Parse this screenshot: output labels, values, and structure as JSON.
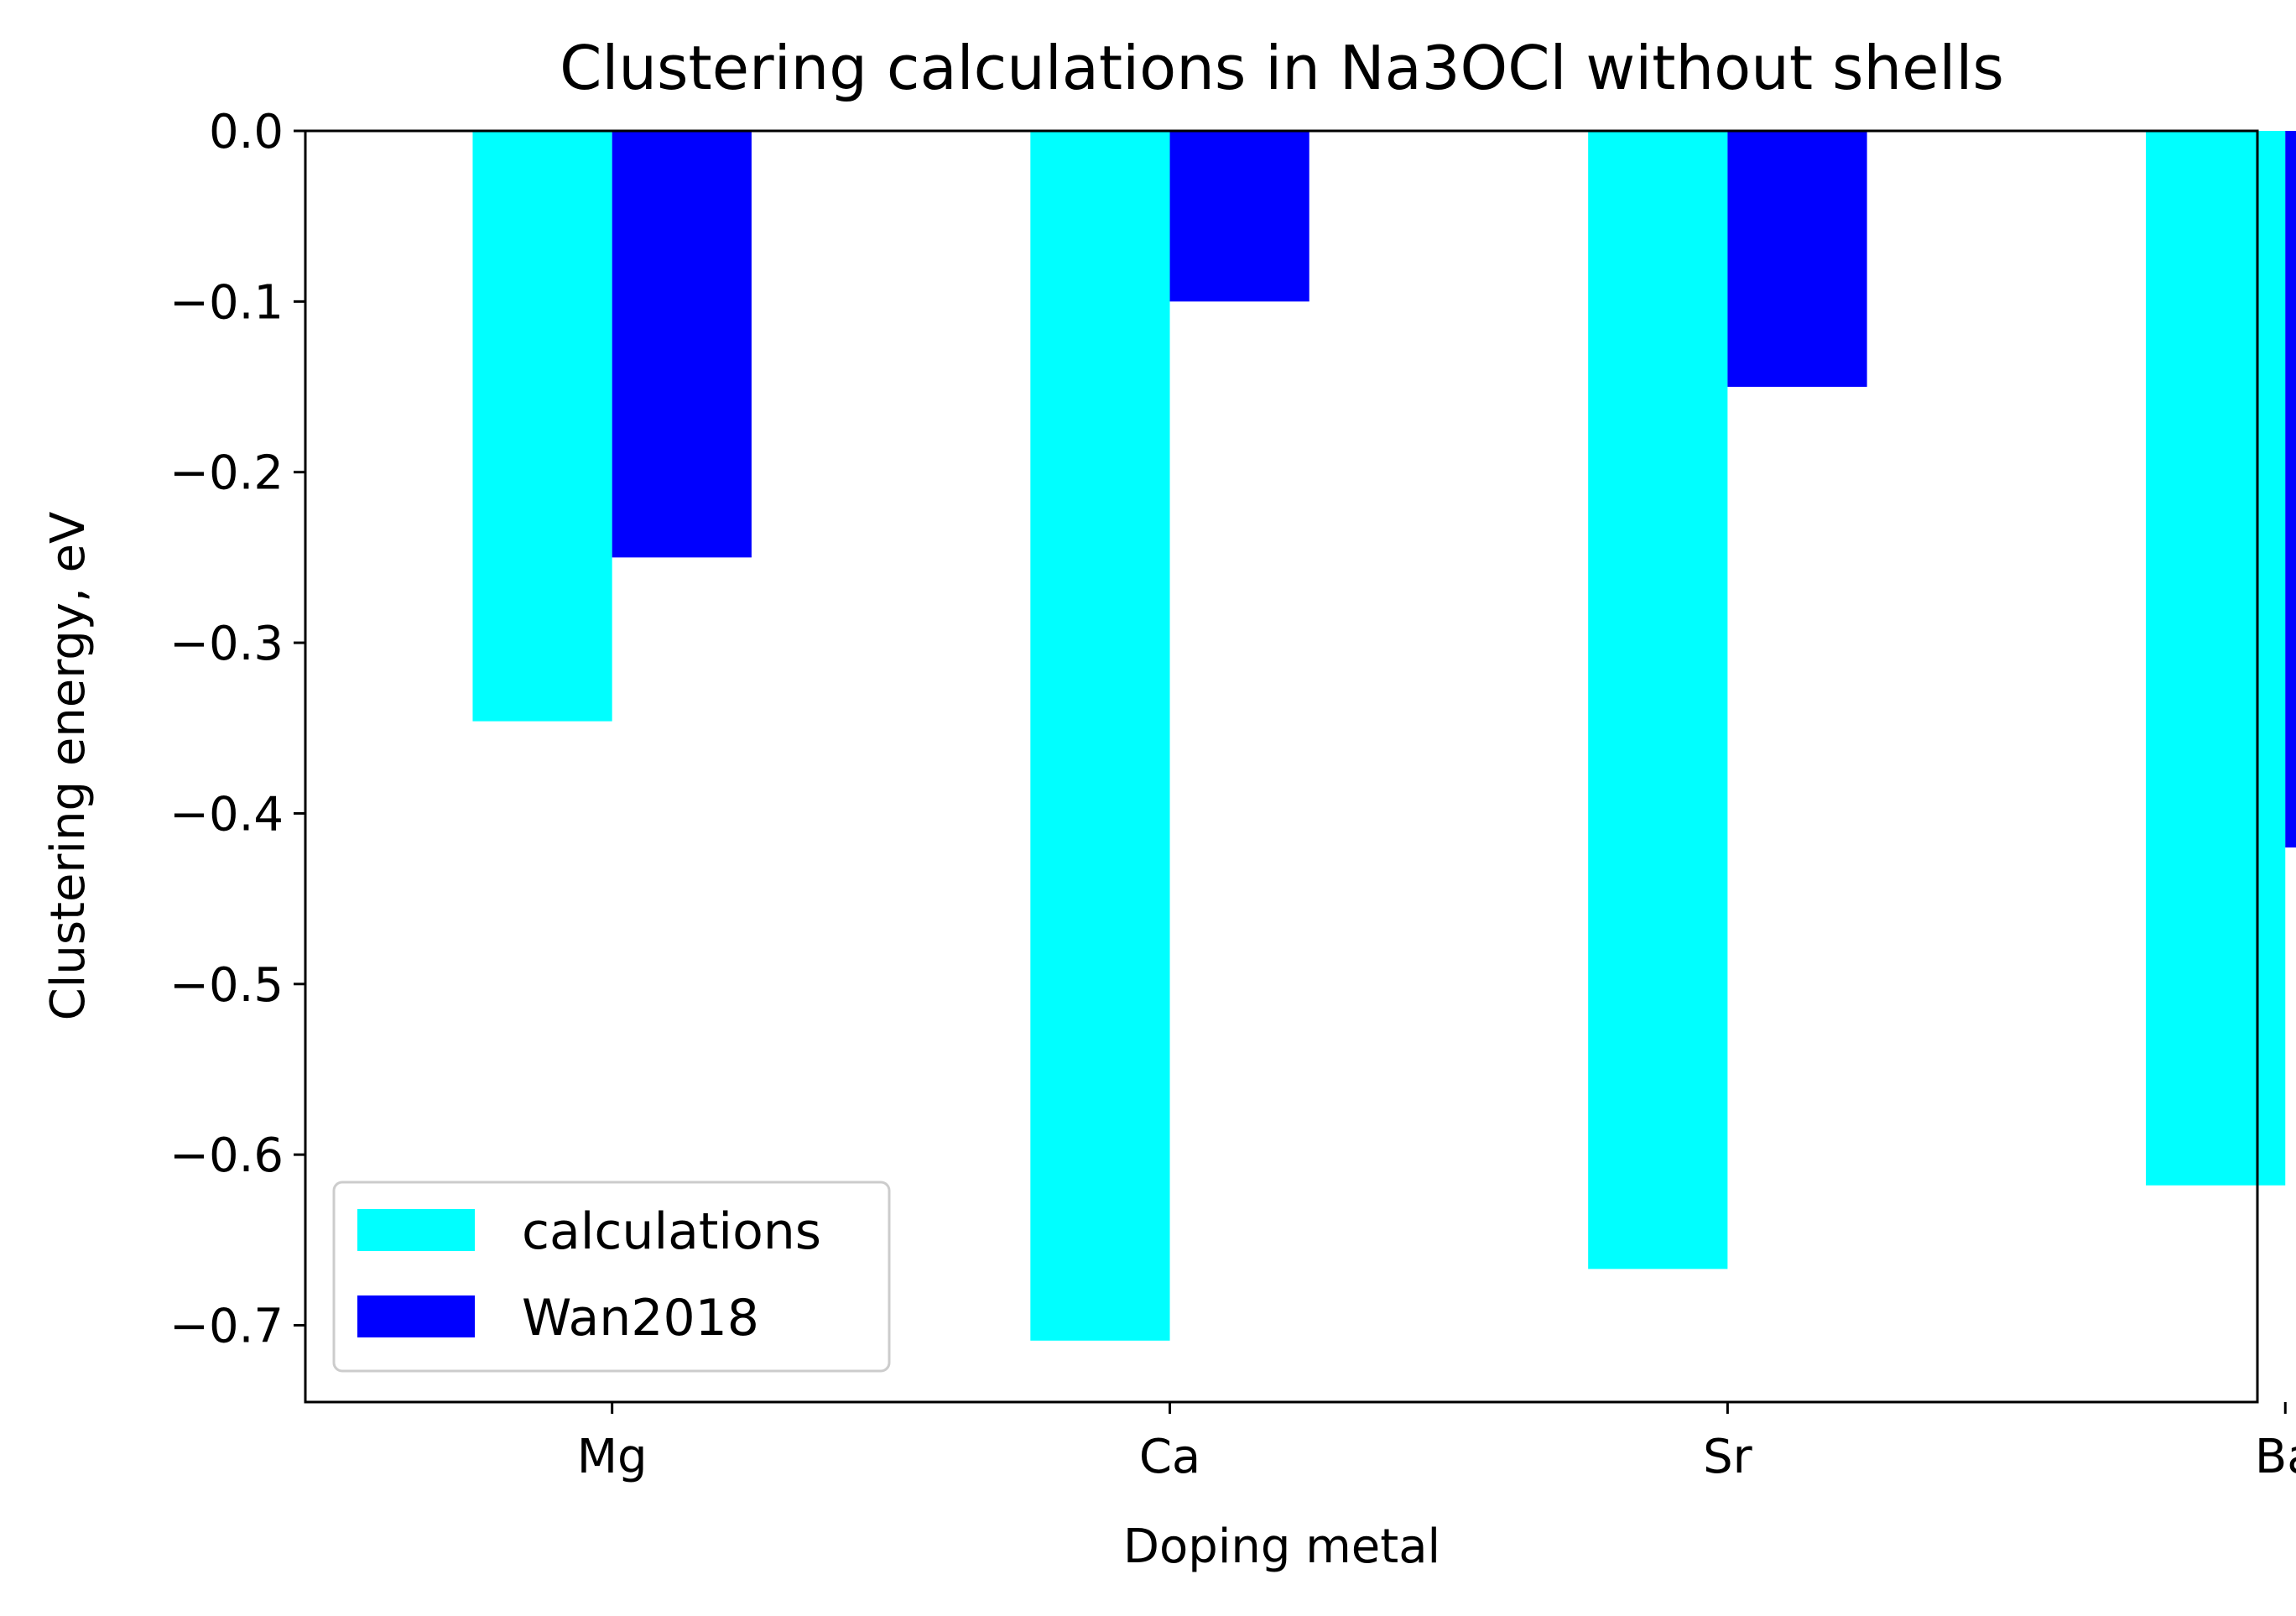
{
  "chart_data": {
    "type": "bar",
    "title": "Clustering calculations in Na3OCl without shells",
    "xlabel": "Doping metal",
    "ylabel": "Clustering energy, eV",
    "categories": [
      "Mg",
      "Ca",
      "Sr",
      "Ba"
    ],
    "series": [
      {
        "name": "calculations",
        "color": "#00ffff",
        "values": [
          -0.346,
          -0.709,
          -0.667,
          -0.618
        ]
      },
      {
        "name": "Wan2018",
        "color": "#0000ff",
        "values": [
          -0.25,
          -0.1,
          -0.15,
          -0.42
        ]
      }
    ],
    "ylim": [
      -0.745,
      0.0
    ],
    "yticks": [
      0.0,
      -0.1,
      -0.2,
      -0.3,
      -0.4,
      -0.5,
      -0.6,
      -0.7
    ],
    "ytick_labels": [
      "0.0",
      "−0.1",
      "−0.2",
      "−0.3",
      "−0.4",
      "−0.5",
      "−0.6",
      "−0.7"
    ],
    "grid": false,
    "legend_position": "bottom-left"
  }
}
